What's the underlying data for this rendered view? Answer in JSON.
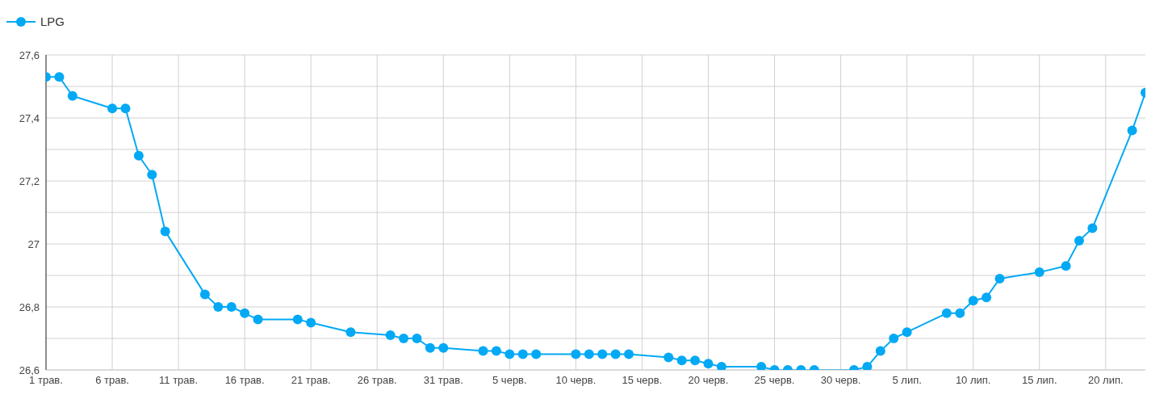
{
  "chart_data": {
    "type": "line",
    "x": [
      "--05-01",
      "--05-02",
      "--05-03",
      "--05-06",
      "--05-07",
      "--05-08",
      "--05-09",
      "--05-10",
      "--05-13",
      "--05-14",
      "--05-15",
      "--05-16",
      "--05-17",
      "--05-20",
      "--05-21",
      "--05-24",
      "--05-27",
      "--05-28",
      "--05-29",
      "--05-30",
      "--05-31",
      "--06-03",
      "--06-04",
      "--06-05",
      "--06-06",
      "--06-07",
      "--06-10",
      "--06-11",
      "--06-12",
      "--06-13",
      "--06-14",
      "--06-17",
      "--06-18",
      "--06-19",
      "--06-20",
      "--06-21",
      "--06-24",
      "--06-25",
      "--06-26",
      "--06-27",
      "--06-28",
      "--07-01",
      "--07-02",
      "--07-03",
      "--07-04",
      "--07-05",
      "--07-08",
      "--07-09",
      "--07-10",
      "--07-11",
      "--07-12",
      "--07-15",
      "--07-17",
      "--07-18",
      "--07-19",
      "--07-22",
      "--07-23"
    ],
    "series": [
      {
        "name": "LPG",
        "color": "#03a9f4",
        "values": [
          27.53,
          27.53,
          27.47,
          27.43,
          27.43,
          27.28,
          27.22,
          27.04,
          26.84,
          26.8,
          26.8,
          26.78,
          26.76,
          26.76,
          26.75,
          26.72,
          26.71,
          26.7,
          26.7,
          26.67,
          26.67,
          26.66,
          26.66,
          26.65,
          26.65,
          26.65,
          26.65,
          26.65,
          26.65,
          26.65,
          26.65,
          26.64,
          26.63,
          26.63,
          26.62,
          26.61,
          26.61,
          26.6,
          26.6,
          26.6,
          26.6,
          26.6,
          26.61,
          26.66,
          26.7,
          26.72,
          26.78,
          26.78,
          26.82,
          26.83,
          26.89,
          26.91,
          26.93,
          27.01,
          27.05,
          27.36,
          27.48
        ]
      }
    ],
    "xlim": [
      "--05-01",
      "--07-23"
    ],
    "xticks": [
      {
        "value": "--05-01",
        "label": "1 трав."
      },
      {
        "value": "--05-06",
        "label": "6 трав."
      },
      {
        "value": "--05-11",
        "label": "11 трав."
      },
      {
        "value": "--05-16",
        "label": "16 трав."
      },
      {
        "value": "--05-21",
        "label": "21 трав."
      },
      {
        "value": "--05-26",
        "label": "26 трав."
      },
      {
        "value": "--05-31",
        "label": "31 трав."
      },
      {
        "value": "--06-05",
        "label": "5 черв."
      },
      {
        "value": "--06-10",
        "label": "10 черв."
      },
      {
        "value": "--06-15",
        "label": "15 черв."
      },
      {
        "value": "--06-20",
        "label": "20 черв."
      },
      {
        "value": "--06-25",
        "label": "25 черв."
      },
      {
        "value": "--06-30",
        "label": "30 черв."
      },
      {
        "value": "--07-05",
        "label": "5 лип."
      },
      {
        "value": "--07-10",
        "label": "10 лип."
      },
      {
        "value": "--07-15",
        "label": "15 лип."
      },
      {
        "value": "--07-20",
        "label": "20 лип."
      }
    ],
    "ylim": [
      26.6,
      27.6
    ],
    "yticks": [
      {
        "value": 26.6,
        "label": "26,6"
      },
      {
        "value": 26.7,
        "label": null
      },
      {
        "value": 26.8,
        "label": "26,8"
      },
      {
        "value": 26.9,
        "label": null
      },
      27,
      {
        "value": 27.1,
        "label": null
      },
      {
        "value": 27.2,
        "label": "27,2"
      },
      {
        "value": 27.3,
        "label": null
      },
      {
        "value": 27.4,
        "label": "27,4"
      },
      {
        "value": 27.5,
        "label": null
      },
      {
        "value": 27.6,
        "label": "27,6"
      }
    ],
    "grid": true,
    "legend": "top left",
    "marker": "circle",
    "line_style": "solid"
  }
}
